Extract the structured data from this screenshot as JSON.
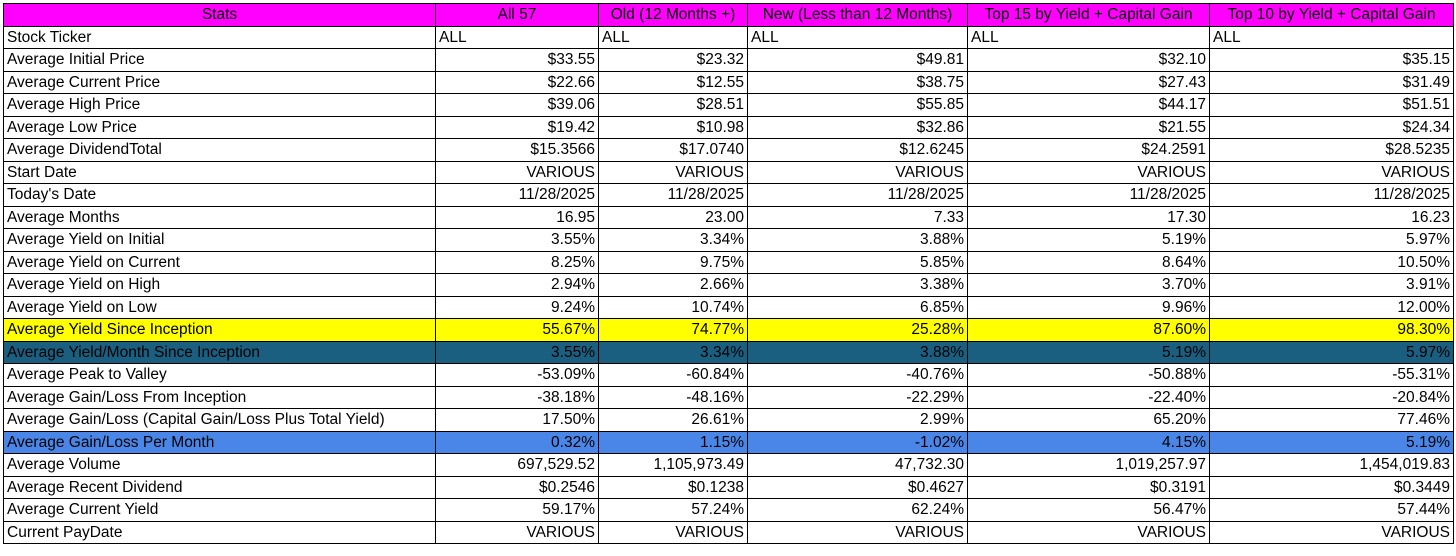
{
  "colors": {
    "header_bg": "#ff00ff",
    "yellow_row": "#ffff00",
    "teal_row": "#1a5f80",
    "blue_row": "#4a86e8"
  },
  "headers": [
    "Stats",
    "All 57",
    "Old (12 Months +)",
    "New (Less than 12 Months)",
    "Top 15 by Yield + Capital Gain",
    "Top 10 by Yield + Capital Gain"
  ],
  "rows": [
    {
      "label": "Stock Ticker",
      "values": [
        "ALL",
        "ALL",
        "ALL",
        "ALL",
        "ALL"
      ]
    },
    {
      "label": "Average Initial Price",
      "values": [
        "$33.55",
        "$23.32",
        "$49.81",
        "$32.10",
        "$35.15"
      ]
    },
    {
      "label": "Average Current Price",
      "values": [
        "$22.66",
        "$12.55",
        "$38.75",
        "$27.43",
        "$31.49"
      ]
    },
    {
      "label": "Average High Price",
      "values": [
        "$39.06",
        "$28.51",
        "$55.85",
        "$44.17",
        "$51.51"
      ]
    },
    {
      "label": "Average Low Price",
      "values": [
        "$19.42",
        "$10.98",
        "$32.86",
        "$21.55",
        "$24.34"
      ]
    },
    {
      "label": "Average DividendTotal",
      "values": [
        "$15.3566",
        "$17.0740",
        "$12.6245",
        "$24.2591",
        "$28.5235"
      ]
    },
    {
      "label": "Start Date",
      "values": [
        "VARIOUS",
        "VARIOUS",
        "VARIOUS",
        "VARIOUS",
        "VARIOUS"
      ]
    },
    {
      "label": "Today's Date",
      "values": [
        "11/28/2025",
        "11/28/2025",
        "11/28/2025",
        "11/28/2025",
        "11/28/2025"
      ]
    },
    {
      "label": "Average Months",
      "values": [
        "16.95",
        "23.00",
        "7.33",
        "17.30",
        "16.23"
      ]
    },
    {
      "label": "Average Yield on Initial",
      "values": [
        "3.55%",
        "3.34%",
        "3.88%",
        "5.19%",
        "5.97%"
      ]
    },
    {
      "label": "Average Yield on Current",
      "values": [
        "8.25%",
        "9.75%",
        "5.85%",
        "8.64%",
        "10.50%"
      ]
    },
    {
      "label": "Average Yield on High",
      "values": [
        "2.94%",
        "2.66%",
        "3.38%",
        "3.70%",
        "3.91%"
      ]
    },
    {
      "label": "Average Yield on Low",
      "values": [
        "9.24%",
        "10.74%",
        "6.85%",
        "9.96%",
        "12.00%"
      ]
    },
    {
      "label": "Average Yield Since Inception",
      "values": [
        "55.67%",
        "74.77%",
        "25.28%",
        "87.60%",
        "98.30%"
      ]
    },
    {
      "label": "Average Yield/Month Since Inception",
      "values": [
        "3.55%",
        "3.34%",
        "3.88%",
        "5.19%",
        "5.97%"
      ]
    },
    {
      "label": "Average Peak to Valley",
      "values": [
        "-53.09%",
        "-60.84%",
        "-40.76%",
        "-50.88%",
        "-55.31%"
      ]
    },
    {
      "label": "Average Gain/Loss From Inception",
      "values": [
        "-38.18%",
        "-48.16%",
        "-22.29%",
        "-22.40%",
        "-20.84%"
      ]
    },
    {
      "label": "Average Gain/Loss (Capital Gain/Loss Plus Total Yield)",
      "values": [
        "17.50%",
        "26.61%",
        "2.99%",
        "65.20%",
        "77.46%"
      ]
    },
    {
      "label": "Average Gain/Loss Per Month",
      "values": [
        "0.32%",
        "1.15%",
        "-1.02%",
        "4.15%",
        "5.19%"
      ]
    },
    {
      "label": "Average Volume",
      "values": [
        "697,529.52",
        "1,105,973.49",
        "47,732.30",
        "1,019,257.97",
        "1,454,019.83"
      ]
    },
    {
      "label": "Average Recent Dividend",
      "values": [
        "$0.2546",
        "$0.1238",
        "$0.4627",
        "$0.3191",
        "$0.3449"
      ]
    },
    {
      "label": "Average Current Yield",
      "values": [
        "59.17%",
        "57.24%",
        "62.24%",
        "56.47%",
        "57.44%"
      ]
    },
    {
      "label": "Current PayDate",
      "values": [
        "VARIOUS",
        "VARIOUS",
        "VARIOUS",
        "VARIOUS",
        "VARIOUS"
      ]
    }
  ]
}
